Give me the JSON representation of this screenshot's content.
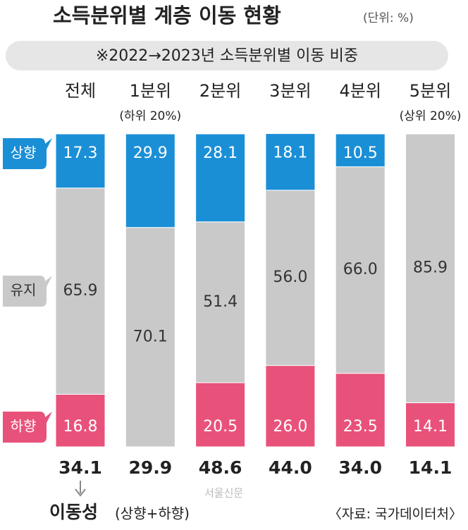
{
  "chart_data": {
    "type": "stacked_bar",
    "title": "소득분위별 계층 이동 현황",
    "unit": "(단위: %)",
    "subtitle": "※2022→2023년 소득분위별 이동 비중",
    "categories": [
      "전체",
      "1분위",
      "2분위",
      "3분위",
      "4분위",
      "5분위"
    ],
    "category_notes": [
      null,
      "(하위 20%)",
      null,
      null,
      null,
      "(상위 20%)"
    ],
    "ylim": [
      0,
      100
    ],
    "series": [
      {
        "name": "상향",
        "color": "#1b8fd6",
        "values": [
          17.3,
          29.9,
          28.1,
          18.1,
          10.5,
          null
        ]
      },
      {
        "name": "유지",
        "color": "#c9c9c9",
        "values": [
          65.9,
          70.1,
          51.4,
          56,
          66,
          85.9
        ],
        "value_labels": [
          "65.9",
          "70.1",
          "51.4",
          "56.0",
          "66.0",
          "85.9"
        ]
      },
      {
        "name": "하향",
        "color": "#e8527a",
        "values": [
          16.8,
          null,
          20.5,
          26,
          23.5,
          14.1
        ],
        "value_labels": [
          "16.8",
          null,
          "20.5",
          "26.0",
          "23.5",
          "14.1"
        ]
      }
    ],
    "mobility": {
      "label": "이동성",
      "note": "(상향+하향)",
      "values": [
        34.1,
        29.9,
        48.6,
        44,
        34,
        14.1
      ],
      "value_labels": [
        "34.1",
        "29.9",
        "48.6",
        "44.0",
        "34.0",
        "14.1"
      ]
    },
    "source": "〈자료: 국가데이터처〉",
    "watermark": "서울신문"
  }
}
